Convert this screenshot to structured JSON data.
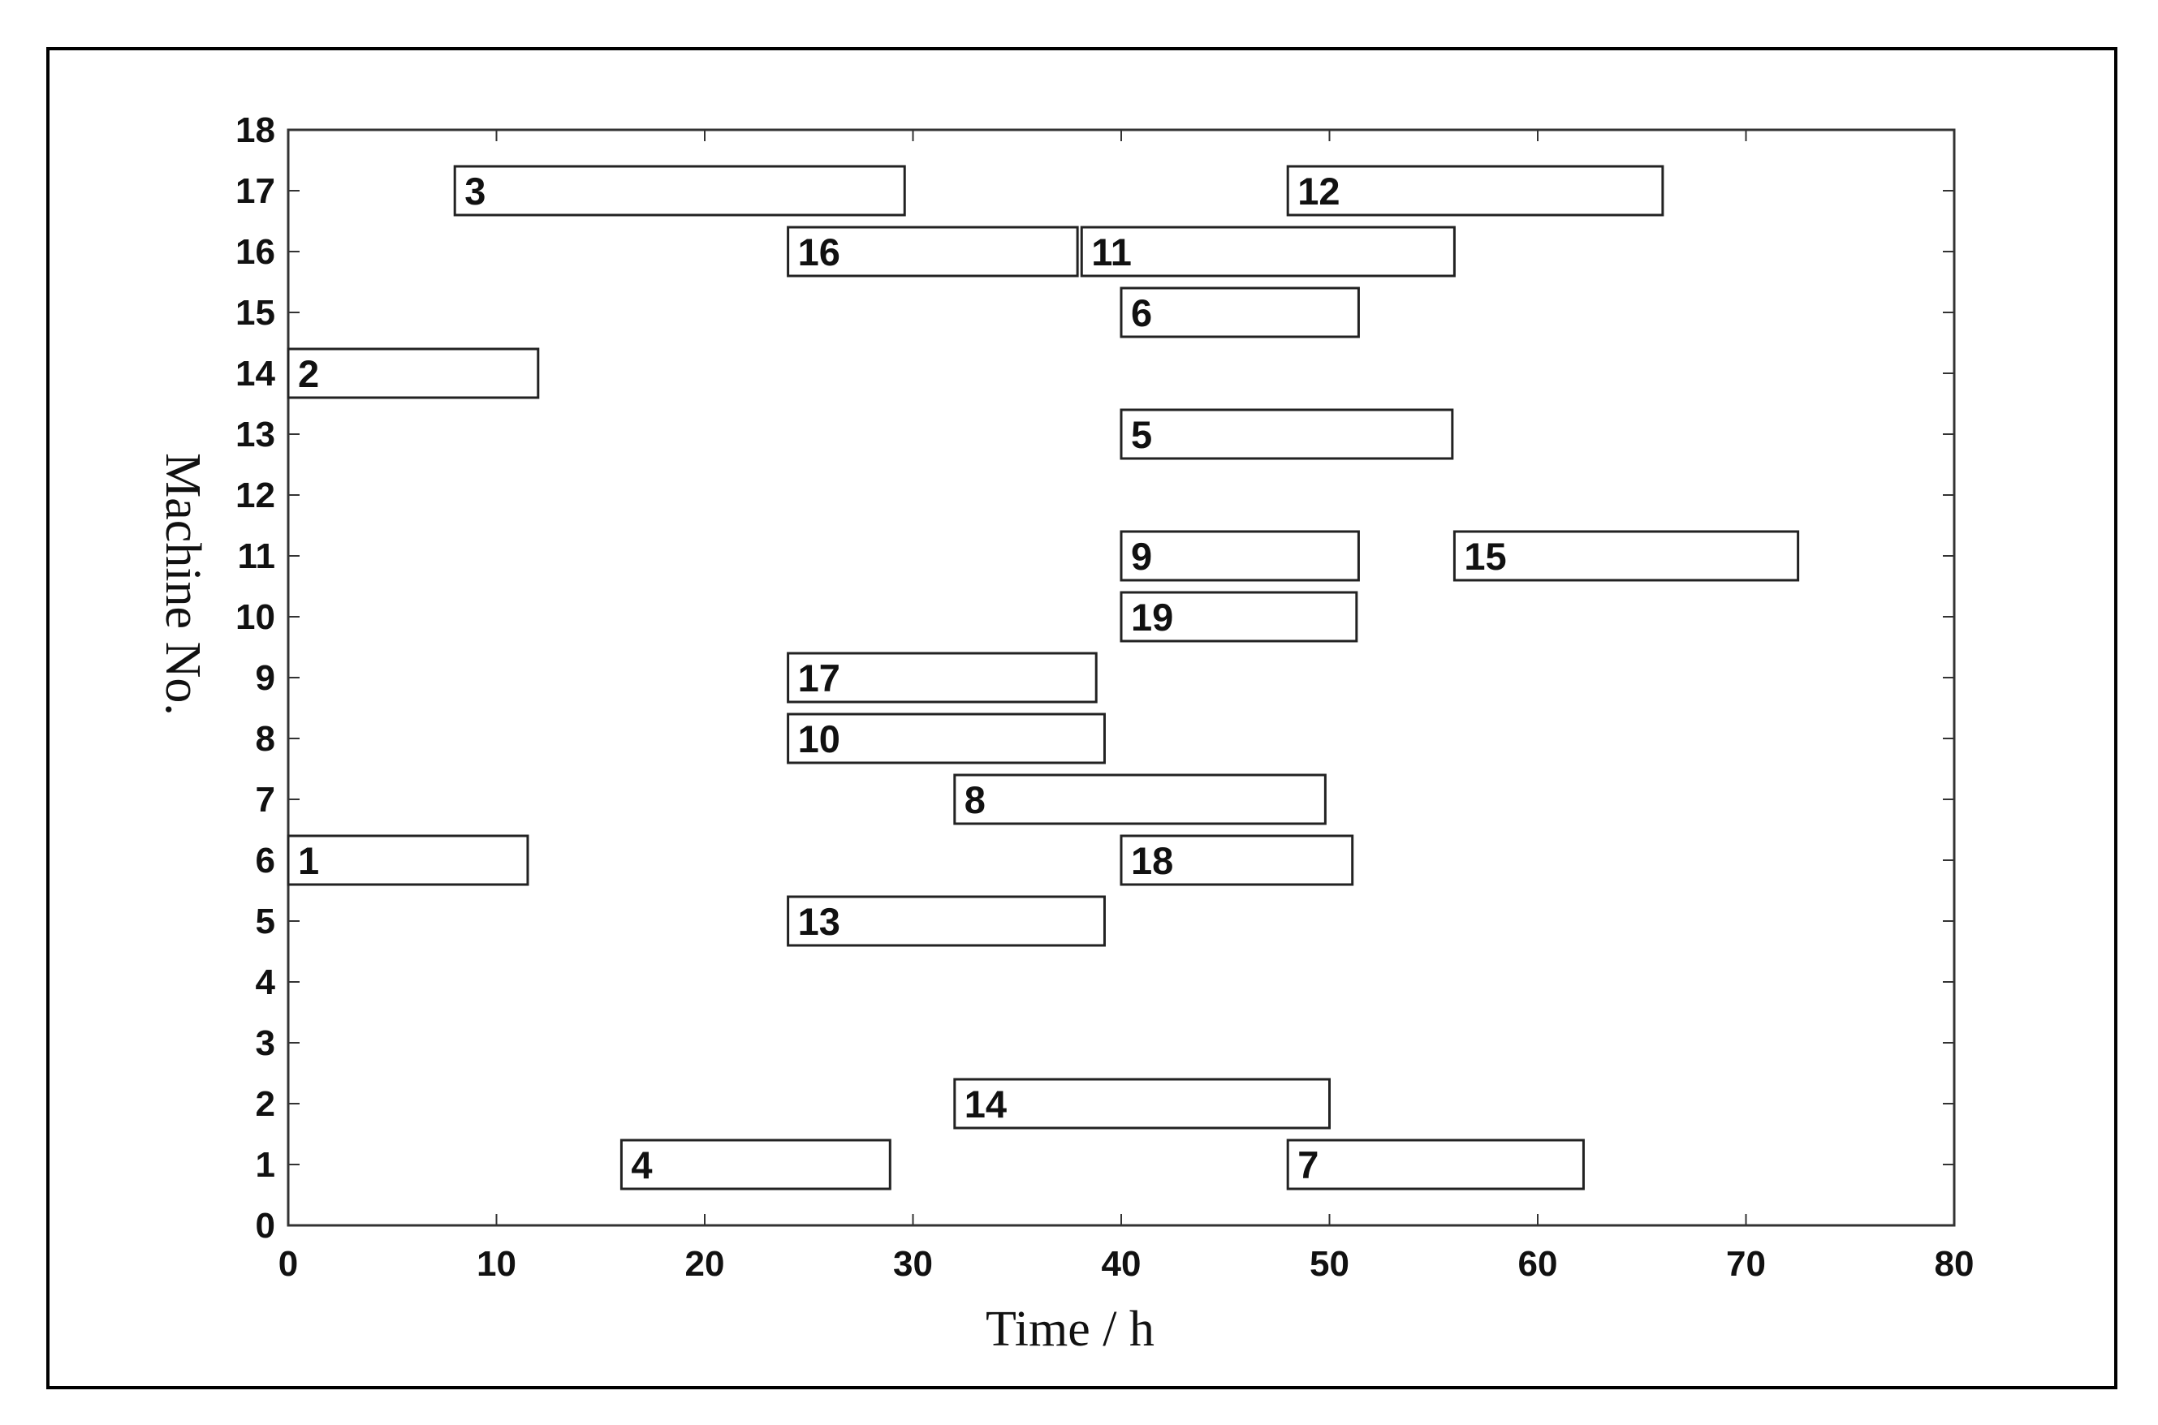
{
  "chart_data": {
    "type": "gantt",
    "xlabel": "Time / h",
    "ylabel": "Machine No.",
    "xlim": [
      0,
      80
    ],
    "ylim": [
      0,
      18
    ],
    "x_ticks": [
      0,
      10,
      20,
      30,
      40,
      50,
      60,
      70,
      80
    ],
    "y_ticks": [
      0,
      1,
      2,
      3,
      4,
      5,
      6,
      7,
      8,
      9,
      10,
      11,
      12,
      13,
      14,
      15,
      16,
      17,
      18
    ],
    "grid": false,
    "colors": {
      "bar_fill": "#ffffff",
      "bar_stroke": "#222222",
      "axis": "#333333",
      "frame": "#000000"
    },
    "tasks": [
      {
        "label": "1",
        "machine": 6,
        "start": 0,
        "end": 11.5
      },
      {
        "label": "2",
        "machine": 14,
        "start": 0,
        "end": 12
      },
      {
        "label": "3",
        "machine": 17,
        "start": 8,
        "end": 29.6
      },
      {
        "label": "4",
        "machine": 1,
        "start": 16,
        "end": 28.9
      },
      {
        "label": "5",
        "machine": 13,
        "start": 40,
        "end": 55.9
      },
      {
        "label": "6",
        "machine": 15,
        "start": 40,
        "end": 51.4
      },
      {
        "label": "7",
        "machine": 1,
        "start": 48,
        "end": 62.2
      },
      {
        "label": "8",
        "machine": 7,
        "start": 32,
        "end": 49.8
      },
      {
        "label": "9",
        "machine": 11,
        "start": 40,
        "end": 51.4
      },
      {
        "label": "10",
        "machine": 8,
        "start": 24,
        "end": 39.2
      },
      {
        "label": "11",
        "machine": 16,
        "start": 38.1,
        "end": 56
      },
      {
        "label": "12",
        "machine": 17,
        "start": 48,
        "end": 66
      },
      {
        "label": "13",
        "machine": 5,
        "start": 24,
        "end": 39.2
      },
      {
        "label": "14",
        "machine": 2,
        "start": 32,
        "end": 50
      },
      {
        "label": "15",
        "machine": 11,
        "start": 56,
        "end": 72.5
      },
      {
        "label": "16",
        "machine": 16,
        "start": 24,
        "end": 37.9
      },
      {
        "label": "17",
        "machine": 9,
        "start": 24,
        "end": 38.8
      },
      {
        "label": "18",
        "machine": 6,
        "start": 40,
        "end": 51.1
      },
      {
        "label": "19",
        "machine": 10,
        "start": 40,
        "end": 51.3
      }
    ]
  }
}
